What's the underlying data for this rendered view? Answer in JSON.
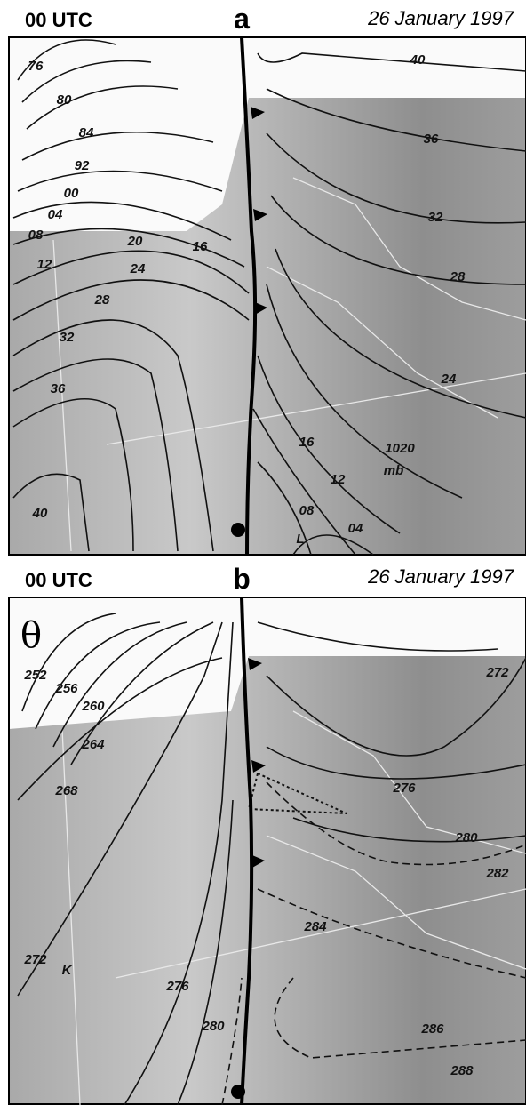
{
  "panel_a": {
    "time": "00 UTC",
    "letter": "a",
    "date": "26 January 1997",
    "labels": [
      "76",
      "80",
      "84",
      "92",
      "00",
      "04",
      "08",
      "12",
      "16",
      "20",
      "24",
      "28",
      "32",
      "36",
      "40",
      "40",
      "36",
      "32",
      "28",
      "24",
      "16",
      "12",
      "08",
      "04",
      "1020",
      "mb",
      "L"
    ]
  },
  "panel_b": {
    "time": "00 UTC",
    "letter": "b",
    "date": "26 January 1997",
    "symbol": "θ",
    "labels": [
      "252",
      "256",
      "260",
      "264",
      "268",
      "272",
      "K",
      "276",
      "280",
      "272",
      "276",
      "280",
      "282",
      "284",
      "286",
      "288"
    ]
  }
}
